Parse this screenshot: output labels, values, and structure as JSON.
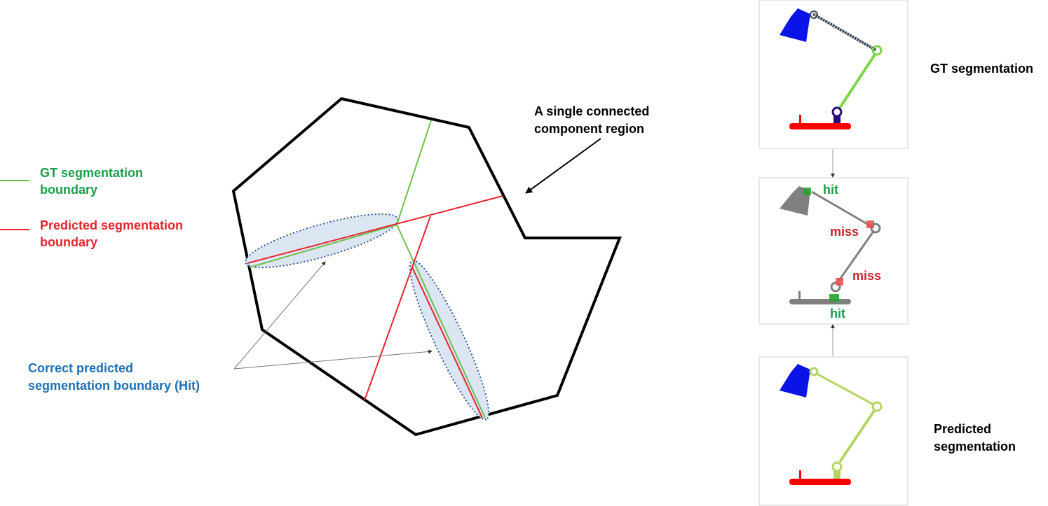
{
  "legend": {
    "gt_label": [
      "GT segmentation",
      "boundary"
    ],
    "pred_label": [
      "Predicted segmentation",
      "boundary"
    ],
    "gt_color": "#6cc04a",
    "pred_color": "#e8232e"
  },
  "annotations": {
    "region_label": [
      "A single connected",
      "component region"
    ],
    "hit_label": [
      "Correct predicted",
      "segmentation boundary (Hit)"
    ],
    "hit_color": "#1f6fb2",
    "ellipse_fill": "#dce6f2",
    "ellipse_stroke": "#2e5597"
  },
  "panels": {
    "gt_title": "GT segmentation",
    "pred_title": [
      "Predicted",
      "segmentation"
    ],
    "marks": [
      {
        "text": "hit",
        "status": "hit"
      },
      {
        "text": "miss",
        "status": "miss"
      },
      {
        "text": "miss",
        "status": "miss"
      },
      {
        "text": "hit",
        "status": "hit"
      }
    ],
    "hit_text_color": "#1a9e4a",
    "miss_text_color": "#cc2229",
    "lamp_colors": {
      "shade": "#0a14e6",
      "arm_gt": "#7dd64a",
      "arm_pred": "#b5d662",
      "base": "#ff0000",
      "gray": "#808080",
      "clamp": "#2a0a7a",
      "upper_arm_gt": "#3a4a5a"
    }
  }
}
